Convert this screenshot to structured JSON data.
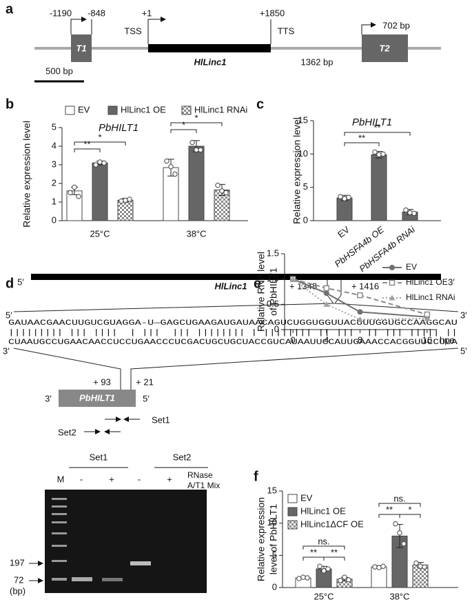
{
  "panel_a": {
    "label": "a",
    "upstream_start": "-1190",
    "upstream_end": "-848",
    "tss_pos": "+1",
    "tts_pos": "+1850",
    "tss": "TSS",
    "tts": "TTS",
    "t1": "T1",
    "t2": "T2",
    "gene": "HlLinc1",
    "gap": "1362 bp",
    "t2_size": "702 bp",
    "scale": "500 bp"
  },
  "chart_data": [
    {
      "panel": "b",
      "type": "bar",
      "title": "PbHILT1",
      "ylabel": "Relative expression level",
      "categories": [
        "25°C",
        "38°C"
      ],
      "series": [
        {
          "name": "EV",
          "color": "#ffffff",
          "values": [
            1.6,
            2.85
          ],
          "errors": [
            0.2,
            0.45
          ],
          "points": [
            [
              1.5,
              1.8,
              1.3
            ],
            [
              3.2,
              2.9,
              2.5
            ]
          ]
        },
        {
          "name": "HlLinc1 OE",
          "color": "#666666",
          "values": [
            3.1,
            4.0
          ],
          "errors": [
            0.1,
            0.3
          ],
          "points": [
            [
              3.0,
              3.15,
              3.1
            ],
            [
              4.2,
              3.8,
              3.8
            ]
          ]
        },
        {
          "name": "HlLinc1 RNAi",
          "color": "#999999",
          "pattern": "checker",
          "values": [
            1.1,
            1.65
          ],
          "errors": [
            0.1,
            0.3
          ],
          "points": [
            [
              1.05,
              1.1,
              1.15
            ],
            [
              1.9,
              1.6,
              1.5
            ]
          ]
        }
      ],
      "ylim": [
        0,
        5
      ],
      "yticks": [
        0,
        1,
        2,
        3,
        4,
        5
      ],
      "annotations": [
        "**",
        "*",
        "*",
        "*"
      ]
    },
    {
      "panel": "c",
      "type": "bar",
      "title": "PbHILT1",
      "ylabel": "Relative expression level",
      "categories": [
        "EV",
        "PbHSFA4b OE",
        "PbHSFA4b RNAi"
      ],
      "values": [
        3.4,
        9.9,
        1.3
      ],
      "errors": [
        0.4,
        0.5,
        0.4
      ],
      "points": [
        [
          3.6,
          3.3,
          3.5
        ],
        [
          10.3,
          9.9,
          10.0
        ],
        [
          1.6,
          1.2,
          1.1
        ]
      ],
      "color": "#666666",
      "ylim": [
        0,
        15
      ],
      "yticks": [
        0,
        5,
        10,
        15
      ],
      "annotations": [
        "**",
        "**"
      ]
    },
    {
      "panel": "e",
      "type": "line",
      "ylabel": [
        "Relative RNA level",
        "of PbHILT1"
      ],
      "x": [
        0,
        4,
        8,
        16
      ],
      "xlim": [
        -1,
        17
      ],
      "xticks": [
        0,
        4,
        8,
        16
      ],
      "xlabel": "hpa",
      "series": [
        {
          "name": "EV",
          "color": "#707070",
          "marker": "circle",
          "dash": "solid",
          "values": [
            1.0,
            0.72,
            0.35,
            0.25
          ]
        },
        {
          "name": "HlLinc1 OE",
          "color": "#8a8a8a",
          "marker": "square",
          "dash": "dashed",
          "values": [
            1.0,
            0.82,
            0.68,
            0.3
          ]
        },
        {
          "name": "HlLinc1 RNAi",
          "color": "#a0a0a0",
          "marker": "triangle",
          "dash": "dotted",
          "values": [
            1.0,
            0.5,
            0.2,
            0.22
          ]
        }
      ],
      "ylim": [
        0,
        1.5
      ],
      "yticks": [
        0,
        {
          "value": 0.5,
          "label": "0.5"
        },
        {
          "value": 1,
          "label": "1.0"
        },
        {
          "value": 1.5,
          "label": "1.5"
        }
      ]
    },
    {
      "panel": "f",
      "type": "bar",
      "ylabel": [
        "Relative expression",
        "level of PbHILT1"
      ],
      "categories": [
        "25°C",
        "38°C"
      ],
      "series": [
        {
          "name": "EV",
          "color": "#ffffff",
          "values": [
            1.5,
            3.2
          ],
          "errors": [
            0.15,
            0.2
          ],
          "points": [
            [
              1.4,
              1.6,
              1.5
            ],
            [
              3.2,
              3.1,
              3.3
            ]
          ]
        },
        {
          "name": "HlLinc1 OE",
          "color": "#666666",
          "values": [
            2.9,
            8.0
          ],
          "errors": [
            0.4,
            1.8
          ],
          "points": [
            [
              3.3,
              2.6,
              2.9
            ],
            [
              9.9,
              8.5,
              6.8
            ]
          ]
        },
        {
          "name": "HlLinc1ΔCF OE",
          "color": "#999999",
          "pattern": "checker",
          "values": [
            1.3,
            3.5
          ],
          "errors": [
            0.3,
            0.4
          ],
          "points": [
            [
              1.1,
              1.6,
              1.2
            ],
            [
              3.8,
              3.3,
              3.2
            ]
          ]
        }
      ],
      "ylim": [
        0,
        15
      ],
      "yticks": [
        0,
        5,
        10,
        15
      ],
      "annotations": [
        "ns.",
        "**",
        "**",
        "ns.",
        "**",
        "*"
      ]
    }
  ],
  "panel_d": {
    "label": "d",
    "five": "5′",
    "three": "3′",
    "gene": "HlLinc1",
    "start": "+ 1348",
    "end": "+ 1416",
    "seq_top": "GAUAACGAACUUGUCGUAGGA-U—GAGCUGAAGAUGAUAACAGUCUGGUGGUUACUUUGGUGCCAAGGCAU",
    "pairs": "||||||||| ||| ||||  | |||  ||| |||||||| | |||||||| || |||  || ||| ||||| ||",
    "seq_bottom": "CUAAUGCCUGAACAACCUCCUGAACCCUCGACUGCUGCUACCGUCAUAAUUCCAUUGAAACCACGGUUCCUUA",
    "target": "PbHILT1",
    "target_start": "+ 93",
    "target_end": "+ 21",
    "set1": "Set1",
    "set2": "Set2"
  },
  "gel": {
    "lanes": [
      "Set1",
      "Set2"
    ],
    "marker": "M",
    "minus": "-",
    "plus": "+",
    "treatment": [
      "RNase",
      "A/T1 Mix"
    ],
    "sizes": [
      197,
      72
    ],
    "unit": "(bp)"
  }
}
